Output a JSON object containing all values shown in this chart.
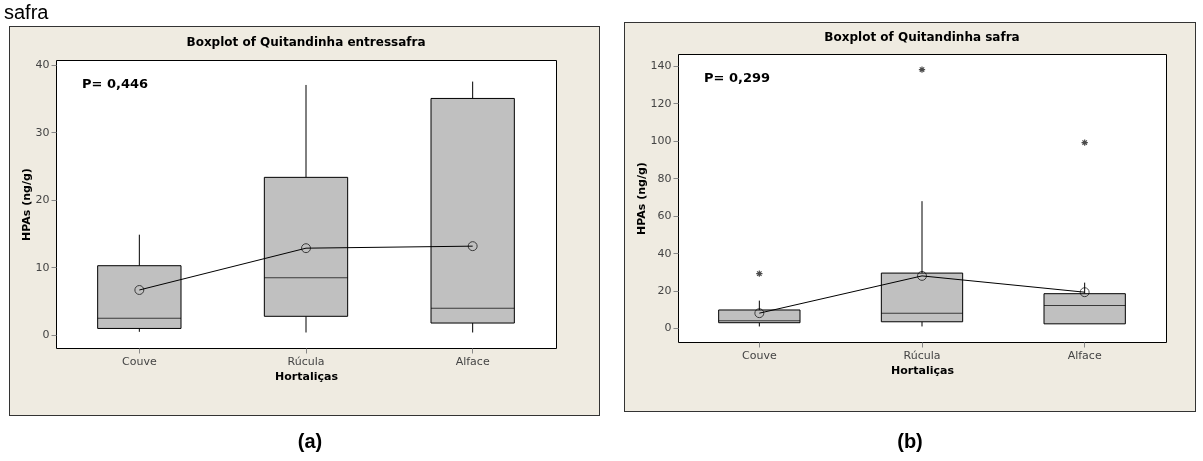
{
  "chart_data": [
    {
      "type": "box",
      "title": "Boxplot of Quitandinha entressafra",
      "xlabel": "Hortaliças",
      "ylabel": "HPAs (ng/g)",
      "categories": [
        "Couve",
        "Rúcula",
        "Alface"
      ],
      "color": "#c0c0c0",
      "boxes": [
        {
          "low": 0.4,
          "q1": 0.9,
          "median": 2.4,
          "q3": 10.2,
          "high": 14.8
        },
        {
          "low": 0.3,
          "q1": 2.7,
          "median": 8.4,
          "q3": 23.3,
          "high": 37.0
        },
        {
          "low": 0.3,
          "q1": 1.7,
          "median": 3.9,
          "q3": 35.0,
          "high": 37.5
        }
      ],
      "series": [
        {
          "type": "line",
          "color": "#000000",
          "marker": "circle",
          "values": [
            6.6,
            12.8,
            13.1
          ]
        }
      ],
      "ylim": [
        -2,
        40.7
      ],
      "yticks": [
        0,
        10,
        20,
        30,
        40
      ],
      "annotations": [
        "P= 0,446",
        "(a)",
        "safra"
      ]
    },
    {
      "type": "box",
      "title": "Boxplot of Quitandinha safra",
      "xlabel": "Hortaliças",
      "ylabel": "HPAs (ng/g)",
      "categories": [
        "Couve",
        "Rúcula",
        "Alface"
      ],
      "color": "#c0c0c0",
      "boxes": [
        {
          "low": 0.8,
          "q1": 2.8,
          "median": 3.9,
          "q3": 9.6,
          "high": 14.6,
          "outliers": [
            29
          ]
        },
        {
          "low": 0.8,
          "q1": 3.3,
          "median": 7.9,
          "q3": 29.3,
          "high": 67.7,
          "outliers": [
            138
          ]
        },
        {
          "low": 2.2,
          "q1": 2.2,
          "median": 12.0,
          "q3": 18.3,
          "high": 24.2,
          "outliers": [
            99
          ]
        }
      ],
      "series": [
        {
          "type": "line",
          "color": "#000000",
          "marker": "circle",
          "values": [
            7.9,
            27.8,
            19.1
          ]
        }
      ],
      "ylim": [
        -7.5,
        146.3
      ],
      "yticks": [
        0,
        20,
        40,
        60,
        80,
        100,
        120,
        140
      ],
      "annotations": [
        "P= 0,299",
        "(b)"
      ]
    }
  ]
}
